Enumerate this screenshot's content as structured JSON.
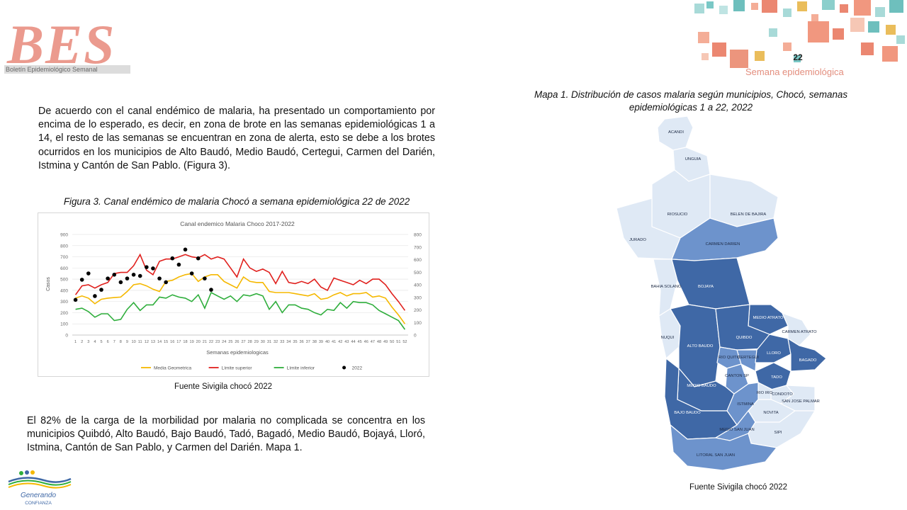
{
  "header": {
    "logo_text": "BES",
    "logo_subtitle": "Boletín Epidemiológico Semanal",
    "page_number": "22",
    "week_label": "Semana epidemiológica"
  },
  "colors": {
    "media": "#f5b800",
    "limite_superior": "#e0201d",
    "limite_inferior": "#2fae3c",
    "obs_2022": "#000000",
    "map_dark": "#3f68a6",
    "map_mid": "#6d93cc",
    "map_light": "#dfe9f5"
  },
  "text": {
    "para1": "De acuerdo con el canal endémico de malaria, ha presentado un comportamiento por encima de lo esperado, es decir, en zona de brote en las semanas epidemiológicas 1 a 14, el resto de las semanas se encuentran en zona de alerta, esto se debe a los brotes ocurridos en los municipios de Alto Baudó, Medio Baudó, Certegui, Carmen del Darién, Istmina y Cantón de San Pablo. (Figura 3).",
    "figure_caption": "Figura 3. Canal endémico de malaria Chocó a semana epidemiológica 22 de 2022",
    "figure_source": "Fuente Sivigila chocó 2022",
    "para2": "El 82% de la carga de la morbilidad por malaria no complicada se concentra en los municipios Quibdó, Alto Baudó, Bajo Baudó, Tadó, Bagadó, Medio Baudó, Bojayá, Lloró, Istmina, Cantón de San Pablo, y Carmen del Darién. Mapa 1.",
    "map_caption": "Mapa 1. Distribución de casos malaria según municipios, Chocó, semanas epidemiológicas 1 a 22, 2022",
    "map_source": "Fuente Sivigila chocó 2022"
  },
  "chart_data": {
    "type": "line",
    "title": "Canal endemico Malaria Choco 2017-2022",
    "xlabel": "Semanas epidemiologicas",
    "ylabel": "Casos",
    "ylim": [
      0,
      900
    ],
    "y2lim": [
      0,
      800
    ],
    "yticks": [
      0,
      100,
      200,
      300,
      400,
      500,
      600,
      700,
      800,
      900
    ],
    "y2ticks": [
      0,
      100,
      200,
      300,
      400,
      500,
      600,
      700,
      800
    ],
    "x": [
      1,
      2,
      3,
      4,
      5,
      6,
      7,
      8,
      9,
      10,
      11,
      12,
      13,
      14,
      15,
      16,
      17,
      18,
      19,
      20,
      21,
      22,
      23,
      24,
      25,
      26,
      27,
      28,
      29,
      30,
      31,
      32,
      33,
      34,
      35,
      36,
      37,
      38,
      39,
      40,
      41,
      42,
      43,
      44,
      45,
      46,
      47,
      48,
      49,
      50,
      51,
      52
    ],
    "legend_position": "bottom",
    "series": [
      {
        "name": "Media Geometrica",
        "color": "#f5b800",
        "type": "line",
        "axis": "left",
        "values": [
          330,
          350,
          330,
          280,
          320,
          330,
          335,
          340,
          390,
          450,
          460,
          440,
          410,
          390,
          480,
          490,
          520,
          540,
          550,
          480,
          520,
          540,
          540,
          480,
          450,
          420,
          520,
          480,
          470,
          470,
          390,
          380,
          380,
          380,
          370,
          360,
          350,
          370,
          320,
          330,
          360,
          380,
          350,
          370,
          370,
          380,
          340,
          350,
          330,
          250,
          180,
          100
        ]
      },
      {
        "name": "Límite superior",
        "color": "#e0201d",
        "type": "line",
        "axis": "left",
        "values": [
          360,
          440,
          450,
          420,
          450,
          470,
          550,
          560,
          560,
          620,
          720,
          580,
          540,
          660,
          680,
          680,
          700,
          720,
          700,
          690,
          720,
          680,
          700,
          680,
          600,
          520,
          680,
          600,
          570,
          590,
          560,
          460,
          570,
          470,
          460,
          480,
          460,
          500,
          430,
          400,
          510,
          490,
          470,
          450,
          490,
          460,
          500,
          500,
          450,
          370,
          300,
          220
        ]
      },
      {
        "name": "Límite inferior",
        "color": "#2fae3c",
        "type": "line",
        "axis": "left",
        "values": [
          230,
          240,
          210,
          160,
          190,
          190,
          130,
          140,
          230,
          290,
          220,
          270,
          270,
          340,
          330,
          360,
          340,
          330,
          300,
          360,
          240,
          380,
          350,
          320,
          350,
          300,
          360,
          350,
          370,
          350,
          230,
          300,
          200,
          270,
          270,
          240,
          230,
          200,
          180,
          230,
          220,
          290,
          240,
          300,
          290,
          290,
          270,
          220,
          190,
          160,
          130,
          50
        ]
      },
      {
        "name": "2022",
        "color": "#000000",
        "type": "scatter",
        "axis": "right",
        "values": [
          280,
          440,
          490,
          310,
          360,
          450,
          480,
          420,
          450,
          480,
          470,
          540,
          530,
          450,
          420,
          610,
          560,
          680,
          490,
          610,
          450,
          360
        ]
      }
    ]
  },
  "map": {
    "municipalities": [
      {
        "name": "ACANDI",
        "shade": "light"
      },
      {
        "name": "UNGUIA",
        "shade": "light"
      },
      {
        "name": "RIOSUCIO",
        "shade": "light"
      },
      {
        "name": "BELEN DE BAJIRA",
        "shade": "light"
      },
      {
        "name": "JURADO",
        "shade": "light"
      },
      {
        "name": "CARMEN DARIEN",
        "shade": "mid"
      },
      {
        "name": "BAHIA SOLANO",
        "shade": "light"
      },
      {
        "name": "BOJAYA",
        "shade": "dark"
      },
      {
        "name": "MEDIO ATRATO",
        "shade": "dark"
      },
      {
        "name": "CARMEN ATRATO",
        "shade": "light"
      },
      {
        "name": "NUQUI",
        "shade": "light"
      },
      {
        "name": "ALTO BAUDO",
        "shade": "dark"
      },
      {
        "name": "QUIBDO",
        "shade": "dark"
      },
      {
        "name": "RIO QUITO",
        "shade": "mid"
      },
      {
        "name": "CERTEGUI",
        "shade": "mid"
      },
      {
        "name": "LLORO",
        "shade": "dark"
      },
      {
        "name": "BAGADO",
        "shade": "dark"
      },
      {
        "name": "CANTON SP",
        "shade": "mid"
      },
      {
        "name": "TADO",
        "shade": "dark"
      },
      {
        "name": "MEDIO BAUDO",
        "shade": "dark"
      },
      {
        "name": "RIO IRO",
        "shade": "light"
      },
      {
        "name": "CONDOTO",
        "shade": "light"
      },
      {
        "name": "SAN JOSE PALMAR",
        "shade": "light"
      },
      {
        "name": "ISTMINA",
        "shade": "mid"
      },
      {
        "name": "NOVITA",
        "shade": "light"
      },
      {
        "name": "BAJO BAUDO",
        "shade": "dark"
      },
      {
        "name": "MEDIO SAN JUAN",
        "shade": "mid"
      },
      {
        "name": "SIPI",
        "shade": "light"
      },
      {
        "name": "LITORAL SAN JUAN",
        "shade": "mid"
      }
    ]
  },
  "footer": {
    "logo_text": "Generando",
    "logo_subtext": "CONFIANZA"
  }
}
